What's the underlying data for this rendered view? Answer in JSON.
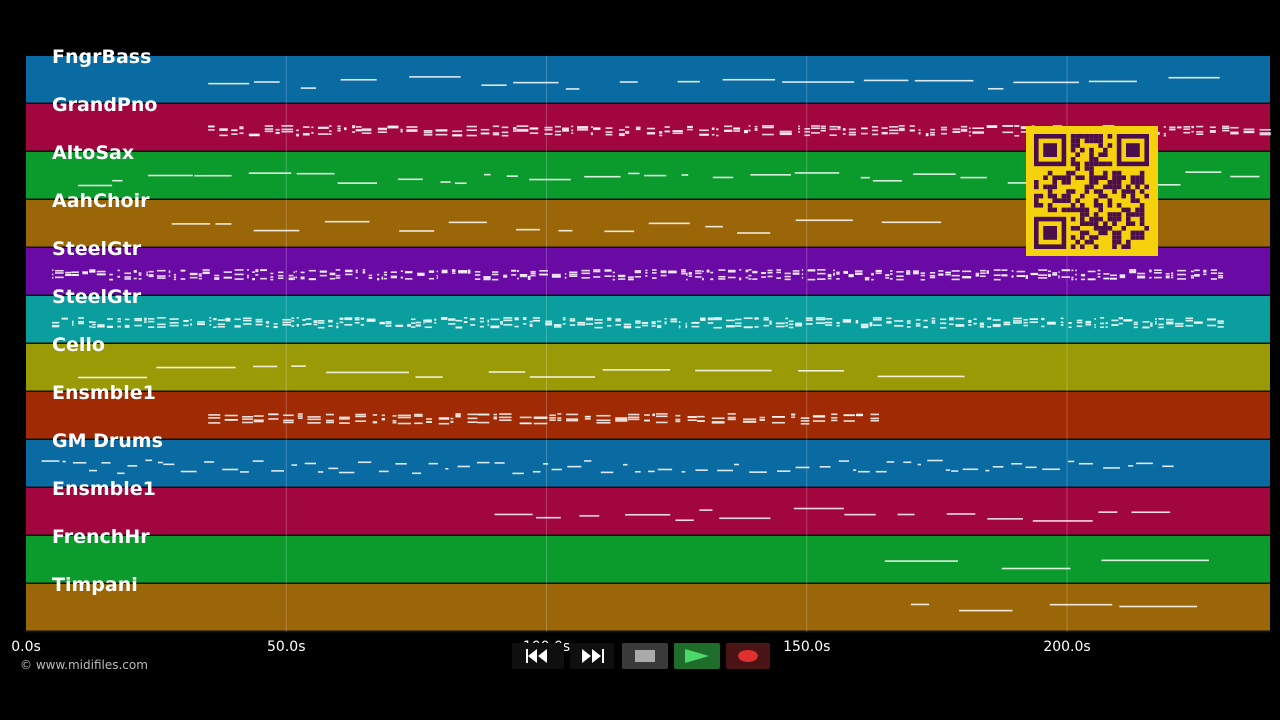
{
  "app": {
    "copyright": "© www.midifiles.com"
  },
  "tracks": [
    {
      "name": "FngrBass",
      "color": "#0a6aa2"
    },
    {
      "name": "GrandPno",
      "color": "#a1063e"
    },
    {
      "name": "AltoSax",
      "color": "#0b9a2c"
    },
    {
      "name": "AahChoir",
      "color": "#9a6608"
    },
    {
      "name": "SteelGtr",
      "color": "#6a0aa4"
    },
    {
      "name": "SteelGtr",
      "color": "#0a9e9e"
    },
    {
      "name": "Cello",
      "color": "#9a9a06"
    },
    {
      "name": "Ensmble1",
      "color": "#a02a04"
    },
    {
      "name": "GM Drums",
      "color": "#0a6aa2"
    },
    {
      "name": "Ensmble1",
      "color": "#a1063e"
    },
    {
      "name": "FrenchHr",
      "color": "#0b9a2c"
    },
    {
      "name": "Timpani",
      "color": "#9a6608"
    }
  ],
  "timeline": {
    "max_seconds": 239,
    "ticks": [
      {
        "seconds": 0,
        "label": "0.0s"
      },
      {
        "seconds": 50,
        "label": "50.0s"
      },
      {
        "seconds": 100,
        "label": "100.0s"
      },
      {
        "seconds": 150,
        "label": "150.0s"
      },
      {
        "seconds": 200,
        "label": "200.0s"
      }
    ]
  },
  "transport": {
    "rewind": "rewind-icon",
    "fast_forward": "fast-forward-icon",
    "stop": "stop-icon",
    "play": "play-icon",
    "record": "record-icon"
  },
  "qr_code": "qr-code"
}
